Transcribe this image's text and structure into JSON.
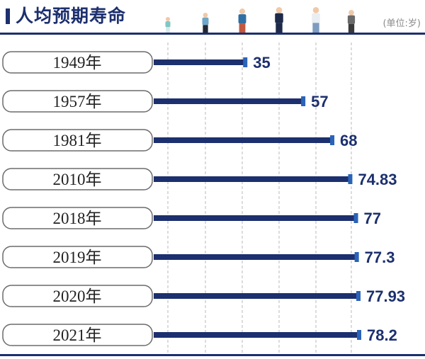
{
  "header": {
    "title": "人均预期寿命",
    "unit": "(单位:岁)"
  },
  "colors": {
    "bar": "#1c2f6e",
    "bar_cap": "#2a63b8",
    "label_border": "#6c6c6c",
    "gridline": "#b9b9b9",
    "title": "#1c2f6e"
  },
  "chart_data": {
    "type": "bar",
    "orientation": "horizontal",
    "title": "人均预期寿命",
    "xlabel": "",
    "ylabel": "",
    "unit": "岁",
    "categories": [
      "1949年",
      "1957年",
      "1981年",
      "2010年",
      "2018年",
      "2019年",
      "2020年",
      "2021年"
    ],
    "values": [
      35,
      57,
      68,
      74.83,
      77,
      77.3,
      77.93,
      78.2
    ],
    "value_labels": [
      "35",
      "57",
      "68",
      "74.83",
      "77",
      "77.3",
      "77.93",
      "78.2"
    ],
    "grid": "vertical dashed"
  },
  "illustration": {
    "icons": [
      "baby-icon",
      "child-icon",
      "young-adult-icon",
      "man-icon",
      "adult-icon",
      "elder-icon"
    ]
  }
}
